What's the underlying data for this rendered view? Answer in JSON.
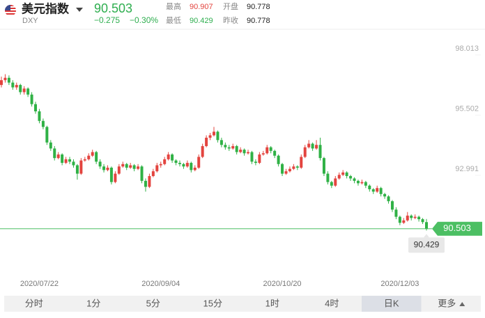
{
  "header": {
    "name": "美元指数",
    "symbol": "DXY",
    "price": 90.503,
    "change": "−0.275",
    "change_pct": "−0.30%",
    "stats": [
      {
        "label": "最高",
        "value": 90.907
      },
      {
        "label": "开盘",
        "value": 90.778
      },
      {
        "label": "最低",
        "value": 90.429
      },
      {
        "label": "昨收",
        "value": 90.778
      }
    ]
  },
  "tabs": {
    "items": [
      "分时",
      "1分",
      "5分",
      "15分",
      "1时",
      "4时",
      "日K",
      "更多"
    ],
    "selected": 6
  },
  "chart_data": {
    "type": "candlestick",
    "categories": [
      null,
      null,
      null,
      null,
      null,
      null,
      null,
      null,
      null,
      null,
      "2020/07/22",
      null,
      null,
      null,
      null,
      null,
      null,
      null,
      null,
      null,
      null,
      null,
      null,
      null,
      null,
      null,
      null,
      null,
      null,
      null,
      null,
      null,
      null,
      null,
      null,
      null,
      null,
      null,
      null,
      null,
      null,
      null,
      "2020/09/04",
      null,
      null,
      null,
      null,
      null,
      null,
      null,
      null,
      null,
      null,
      null,
      null,
      null,
      null,
      null,
      null,
      null,
      null,
      null,
      null,
      null,
      null,
      null,
      null,
      null,
      null,
      null,
      null,
      null,
      null,
      null,
      "2020/10/20",
      null,
      null,
      null,
      null,
      null,
      null,
      null,
      null,
      null,
      null,
      null,
      null,
      null,
      null,
      null,
      null,
      null,
      null,
      null,
      null,
      null,
      null,
      null,
      null,
      null,
      null,
      null,
      null,
      null,
      null,
      "2020/12/03",
      null,
      null,
      null,
      null,
      null,
      null,
      null
    ],
    "candles": [
      [
        96.5,
        96.85,
        96.4,
        96.7
      ],
      [
        96.7,
        96.95,
        96.6,
        96.8
      ],
      [
        96.8,
        96.9,
        96.5,
        96.6
      ],
      [
        96.6,
        96.7,
        96.3,
        96.4
      ],
      [
        96.4,
        96.6,
        96.3,
        96.5
      ],
      [
        96.5,
        96.55,
        96.1,
        96.2
      ],
      [
        96.2,
        96.45,
        96.1,
        96.35
      ],
      [
        96.35,
        96.4,
        96.0,
        96.1
      ],
      [
        96.1,
        96.2,
        95.6,
        95.7
      ],
      [
        95.7,
        95.8,
        95.3,
        95.4
      ],
      [
        95.4,
        95.5,
        94.9,
        95.0
      ],
      [
        95.0,
        95.1,
        94.65,
        94.75
      ],
      [
        94.75,
        94.8,
        94.0,
        94.1
      ],
      [
        94.1,
        94.2,
        93.75,
        93.85
      ],
      [
        93.85,
        93.95,
        93.35,
        93.45
      ],
      [
        93.45,
        93.7,
        93.4,
        93.6
      ],
      [
        93.6,
        93.65,
        93.15,
        93.25
      ],
      [
        93.25,
        93.5,
        93.2,
        93.4
      ],
      [
        93.4,
        93.5,
        93.2,
        93.3
      ],
      [
        93.3,
        93.4,
        93.05,
        93.15
      ],
      [
        93.15,
        93.2,
        92.55,
        92.8
      ],
      [
        92.8,
        93.45,
        92.75,
        93.35
      ],
      [
        93.35,
        93.5,
        93.3,
        93.4
      ],
      [
        93.4,
        93.65,
        93.35,
        93.55
      ],
      [
        93.55,
        93.8,
        93.5,
        93.7
      ],
      [
        93.7,
        93.75,
        93.2,
        93.3
      ],
      [
        93.3,
        93.4,
        93.0,
        93.1
      ],
      [
        93.1,
        93.2,
        92.85,
        92.95
      ],
      [
        92.95,
        93.15,
        92.9,
        93.05
      ],
      [
        93.05,
        93.1,
        92.35,
        92.45
      ],
      [
        92.45,
        92.9,
        92.4,
        92.8
      ],
      [
        92.8,
        93.2,
        92.75,
        93.1
      ],
      [
        93.1,
        93.3,
        93.05,
        93.2
      ],
      [
        93.2,
        93.25,
        92.95,
        93.05
      ],
      [
        93.05,
        93.25,
        93.0,
        93.15
      ],
      [
        93.15,
        93.2,
        92.9,
        93.0
      ],
      [
        93.0,
        93.2,
        92.95,
        93.1
      ],
      [
        93.1,
        93.15,
        92.4,
        92.5
      ],
      [
        92.5,
        92.6,
        92.05,
        92.25
      ],
      [
        92.25,
        92.8,
        92.2,
        92.7
      ],
      [
        92.7,
        93.0,
        92.65,
        92.9
      ],
      [
        92.9,
        93.25,
        92.85,
        93.15
      ],
      [
        93.15,
        93.3,
        93.05,
        93.2
      ],
      [
        93.2,
        93.5,
        93.15,
        93.4
      ],
      [
        93.4,
        93.7,
        93.35,
        93.6
      ],
      [
        93.6,
        93.65,
        93.25,
        93.35
      ],
      [
        93.35,
        93.4,
        93.15,
        93.25
      ],
      [
        93.25,
        93.35,
        93.1,
        93.2
      ],
      [
        93.2,
        93.25,
        93.0,
        93.1
      ],
      [
        93.1,
        93.35,
        93.05,
        93.25
      ],
      [
        93.25,
        93.3,
        92.85,
        92.95
      ],
      [
        92.95,
        93.15,
        92.9,
        93.05
      ],
      [
        93.05,
        93.6,
        93.0,
        93.5
      ],
      [
        93.5,
        94.05,
        93.45,
        93.95
      ],
      [
        93.95,
        94.4,
        93.9,
        94.3
      ],
      [
        94.3,
        94.5,
        94.2,
        94.4
      ],
      [
        94.4,
        94.75,
        94.35,
        94.55
      ],
      [
        94.55,
        94.6,
        94.1,
        94.2
      ],
      [
        94.2,
        94.3,
        93.9,
        94.0
      ],
      [
        94.0,
        94.1,
        93.8,
        93.9
      ],
      [
        93.9,
        94.0,
        93.75,
        93.85
      ],
      [
        93.85,
        94.05,
        93.8,
        93.95
      ],
      [
        93.95,
        94.0,
        93.6,
        93.7
      ],
      [
        93.7,
        93.9,
        93.65,
        93.8
      ],
      [
        93.8,
        93.85,
        93.55,
        93.65
      ],
      [
        93.65,
        93.8,
        93.6,
        93.7
      ],
      [
        93.7,
        93.75,
        93.2,
        93.3
      ],
      [
        93.3,
        93.4,
        93.15,
        93.25
      ],
      [
        93.25,
        93.7,
        93.2,
        93.6
      ],
      [
        93.6,
        93.75,
        93.55,
        93.65
      ],
      [
        93.65,
        94.0,
        93.6,
        93.9
      ],
      [
        93.9,
        93.95,
        93.65,
        93.75
      ],
      [
        93.75,
        93.8,
        93.45,
        93.55
      ],
      [
        93.55,
        93.6,
        93.1,
        93.2
      ],
      [
        93.2,
        93.25,
        92.7,
        92.8
      ],
      [
        92.8,
        93.0,
        92.75,
        92.9
      ],
      [
        92.9,
        93.1,
        92.85,
        93.0
      ],
      [
        93.0,
        93.2,
        92.95,
        93.1
      ],
      [
        93.1,
        93.15,
        92.95,
        93.05
      ],
      [
        93.05,
        93.6,
        93.0,
        93.5
      ],
      [
        93.5,
        94.0,
        93.45,
        93.9
      ],
      [
        93.9,
        94.2,
        93.85,
        94.05
      ],
      [
        94.05,
        94.1,
        93.75,
        93.85
      ],
      [
        93.85,
        94.2,
        93.8,
        94.0
      ],
      [
        94.0,
        94.3,
        93.35,
        93.45
      ],
      [
        93.45,
        93.5,
        92.7,
        92.8
      ],
      [
        92.8,
        92.9,
        92.35,
        92.45
      ],
      [
        92.45,
        92.5,
        92.2,
        92.3
      ],
      [
        92.3,
        92.7,
        92.25,
        92.6
      ],
      [
        92.6,
        92.85,
        92.55,
        92.75
      ],
      [
        92.75,
        92.95,
        92.7,
        92.85
      ],
      [
        92.85,
        92.9,
        92.6,
        92.7
      ],
      [
        92.7,
        92.75,
        92.5,
        92.6
      ],
      [
        92.6,
        92.65,
        92.4,
        92.5
      ],
      [
        92.5,
        92.55,
        92.3,
        92.4
      ],
      [
        92.4,
        92.55,
        92.35,
        92.45
      ],
      [
        92.45,
        92.5,
        92.2,
        92.3
      ],
      [
        92.3,
        92.35,
        92.05,
        92.15
      ],
      [
        92.15,
        92.2,
        91.95,
        92.05
      ],
      [
        92.05,
        92.3,
        92.0,
        92.2
      ],
      [
        92.2,
        92.25,
        91.85,
        91.95
      ],
      [
        91.95,
        92.0,
        91.75,
        91.85
      ],
      [
        91.85,
        91.9,
        91.55,
        91.65
      ],
      [
        91.65,
        91.7,
        91.2,
        91.3
      ],
      [
        91.3,
        91.4,
        90.9,
        91.0
      ],
      [
        91.0,
        91.05,
        90.65,
        90.75
      ],
      [
        90.75,
        90.95,
        90.7,
        90.85
      ],
      [
        90.85,
        91.2,
        90.8,
        91.05
      ],
      [
        91.05,
        91.1,
        90.85,
        90.95
      ],
      [
        90.95,
        91.1,
        90.9,
        91.0
      ],
      [
        91.0,
        91.05,
        90.8,
        90.9
      ],
      [
        90.9,
        90.95,
        90.7,
        90.778
      ],
      [
        90.778,
        90.907,
        90.429,
        90.503
      ]
    ],
    "ylim": [
      88.578,
      98.884
    ],
    "yticks": [
      92.991,
      95.502,
      98.013
    ],
    "colors": {
      "up": "#e3443f",
      "down": "#2fb145",
      "last": "#4cbf63"
    }
  }
}
